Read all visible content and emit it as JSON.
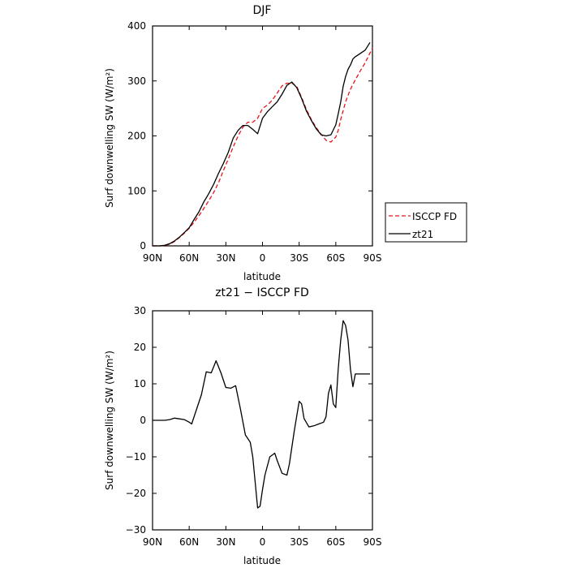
{
  "chart_data": [
    {
      "type": "line",
      "title": "DJF",
      "xlabel": "latitude",
      "ylabel": "Surf downwelling SW (W/m²)",
      "xlim": [
        90,
        -90
      ],
      "ylim": [
        0,
        400
      ],
      "x_tick_labels": [
        "90N",
        "60N",
        "30N",
        "0",
        "30S",
        "60S",
        "90S"
      ],
      "x_tick_values": [
        90,
        60,
        30,
        0,
        -30,
        -60,
        -90
      ],
      "y_ticks": [
        0,
        100,
        200,
        300,
        400
      ],
      "legend": "right",
      "series": [
        {
          "name": "ISCCP FD",
          "color": "#e8141b",
          "dash": "dashed",
          "x": [
            90,
            84,
            80,
            76,
            72,
            68,
            64,
            60,
            56,
            52,
            48,
            44,
            40,
            36,
            32,
            28,
            24,
            20,
            16,
            12,
            8,
            4,
            0,
            -4,
            -8,
            -12,
            -16,
            -20,
            -24,
            -28,
            -32,
            -36,
            -40,
            -44,
            -48,
            -52,
            -56,
            -60,
            -62,
            -64,
            -68,
            -72,
            -76,
            -80,
            -84,
            -90
          ],
          "y": [
            0,
            0,
            1,
            3,
            8,
            15,
            23,
            32,
            43,
            55,
            68,
            82,
            97,
            115,
            137,
            158,
            180,
            200,
            216,
            225,
            225,
            232,
            250,
            256,
            265,
            278,
            291,
            296,
            296,
            290,
            270,
            248,
            230,
            215,
            203,
            192,
            189,
            198,
            210,
            230,
            262,
            285,
            302,
            318,
            333,
            360
          ]
        },
        {
          "name": "zt21",
          "color": "#000000",
          "dash": "solid",
          "x": [
            90,
            84,
            80,
            76,
            72,
            68,
            64,
            60,
            56,
            52,
            48,
            44,
            40,
            36,
            32,
            28,
            24,
            20,
            16,
            12,
            8,
            4,
            0,
            -4,
            -8,
            -12,
            -16,
            -20,
            -24,
            -28,
            -32,
            -36,
            -40,
            -44,
            -48,
            -52,
            -56,
            -60,
            -62,
            -64,
            -66,
            -68,
            -70,
            -72,
            -74,
            -76,
            -80,
            -84,
            -88
          ],
          "y": [
            0,
            0,
            1,
            4,
            9,
            16,
            24,
            33,
            48,
            62,
            80,
            95,
            112,
            132,
            150,
            170,
            196,
            210,
            219,
            219,
            212,
            204,
            232,
            244,
            253,
            262,
            276,
            292,
            298,
            288,
            268,
            245,
            228,
            213,
            202,
            200,
            202,
            220,
            240,
            262,
            290,
            308,
            321,
            329,
            340,
            344,
            350,
            356,
            370
          ]
        }
      ]
    },
    {
      "type": "line",
      "title": "zt21 − ISCCP FD",
      "xlabel": "latitude",
      "ylabel": "Surf downwelling SW (W/m²)",
      "xlim": [
        90,
        -90
      ],
      "ylim": [
        -30,
        30
      ],
      "x_tick_labels": [
        "90N",
        "60N",
        "30N",
        "0",
        "30S",
        "60S",
        "90S"
      ],
      "x_tick_values": [
        90,
        60,
        30,
        0,
        -30,
        -60,
        -90
      ],
      "y_ticks": [
        -30,
        -20,
        -10,
        0,
        10,
        20,
        30
      ],
      "series": [
        {
          "color": "#000000",
          "dash": "solid",
          "x": [
            90,
            84,
            80,
            76,
            72,
            68,
            64,
            60,
            58,
            54,
            50,
            46,
            42,
            38,
            34,
            30,
            26,
            22,
            18,
            14,
            10,
            8,
            4,
            2,
            0,
            -2,
            -6,
            -10,
            -12,
            -16,
            -20,
            -22,
            -26,
            -30,
            -32,
            -34,
            -38,
            -42,
            -46,
            -50,
            -52,
            -54,
            -56,
            -58,
            -60,
            -62,
            -64,
            -66,
            -68,
            -70,
            -72,
            -74,
            -76,
            -78,
            -80,
            -84,
            -88
          ],
          "y": [
            0,
            0,
            0,
            0.2,
            0.6,
            0.4,
            0.2,
            -0.5,
            -1,
            3,
            7,
            13.3,
            13,
            16.3,
            13,
            9,
            8.8,
            9.5,
            3,
            -4,
            -6,
            -10,
            -24,
            -23.5,
            -19,
            -15,
            -10,
            -9,
            -11,
            -14.5,
            -15,
            -12,
            -3,
            5.2,
            4.5,
            0.5,
            -1.8,
            -1.5,
            -1,
            -0.5,
            1,
            7.4,
            9.7,
            4.5,
            3.5,
            14,
            22,
            27.3,
            26,
            22,
            14,
            9.2,
            12.7,
            12.7,
            12.7,
            12.7,
            12.7
          ]
        }
      ]
    }
  ]
}
